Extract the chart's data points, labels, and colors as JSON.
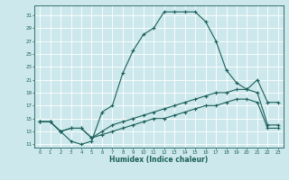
{
  "xlabel": "Humidex (Indice chaleur)",
  "ylabel": "",
  "bg_color": "#cce8ec",
  "grid_color": "#ffffff",
  "line_color": "#1a5f5a",
  "xlim": [
    -0.5,
    23.5
  ],
  "ylim": [
    10.5,
    32.5
  ],
  "xticks": [
    0,
    1,
    2,
    3,
    4,
    5,
    6,
    7,
    8,
    9,
    10,
    11,
    12,
    13,
    14,
    15,
    16,
    17,
    18,
    19,
    20,
    21,
    22,
    23
  ],
  "yticks": [
    11,
    13,
    15,
    17,
    19,
    21,
    23,
    25,
    27,
    29,
    31
  ],
  "curve1_x": [
    0,
    1,
    2,
    3,
    4,
    5,
    6,
    7,
    8,
    9,
    10,
    11,
    12,
    13,
    14,
    15,
    16,
    17,
    18,
    19,
    20,
    21,
    22,
    23
  ],
  "curve1_y": [
    14.5,
    14.5,
    13.0,
    11.5,
    11.0,
    11.5,
    16.0,
    17.0,
    22.0,
    25.5,
    28.0,
    29.0,
    31.5,
    31.5,
    31.5,
    31.5,
    30.0,
    27.0,
    22.5,
    20.5,
    19.5,
    21.0,
    17.5,
    17.5
  ],
  "curve2_x": [
    0,
    1,
    2,
    3,
    4,
    5,
    6,
    7,
    8,
    9,
    10,
    11,
    12,
    13,
    14,
    15,
    16,
    17,
    18,
    19,
    20,
    21,
    22,
    23
  ],
  "curve2_y": [
    14.5,
    14.5,
    13.0,
    13.5,
    13.5,
    12.0,
    13.0,
    14.0,
    14.5,
    15.0,
    15.5,
    16.0,
    16.5,
    17.0,
    17.5,
    18.0,
    18.5,
    19.0,
    19.0,
    19.5,
    19.5,
    19.0,
    14.0,
    14.0
  ],
  "curve3_x": [
    0,
    1,
    2,
    3,
    4,
    5,
    6,
    7,
    8,
    9,
    10,
    11,
    12,
    13,
    14,
    15,
    16,
    17,
    18,
    19,
    20,
    21,
    22,
    23
  ],
  "curve3_y": [
    14.5,
    14.5,
    13.0,
    13.5,
    13.5,
    12.0,
    12.5,
    13.0,
    13.5,
    14.0,
    14.5,
    15.0,
    15.0,
    15.5,
    16.0,
    16.5,
    17.0,
    17.0,
    17.5,
    18.0,
    18.0,
    17.5,
    13.5,
    13.5
  ]
}
